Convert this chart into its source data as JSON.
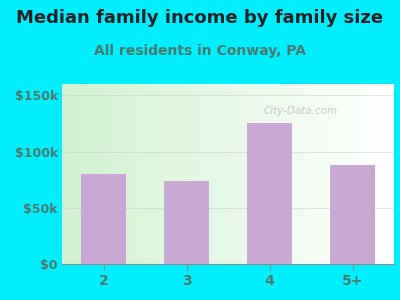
{
  "title": "Median family income by family size",
  "subtitle": "All residents in Conway, PA",
  "categories": [
    "2",
    "3",
    "4",
    "5+"
  ],
  "values": [
    80000,
    74000,
    125000,
    88000
  ],
  "bar_color": "#c9a8d4",
  "title_fontsize": 13,
  "subtitle_fontsize": 10,
  "tick_color": "#4a7a6a",
  "label_color": "#555577",
  "bg_outer": "#00eeff",
  "yticks": [
    0,
    50000,
    100000,
    150000
  ],
  "ytick_labels": [
    "$0",
    "$50k",
    "$100k",
    "$150k"
  ],
  "ylim": [
    0,
    160000
  ],
  "watermark": "City-Data.com"
}
